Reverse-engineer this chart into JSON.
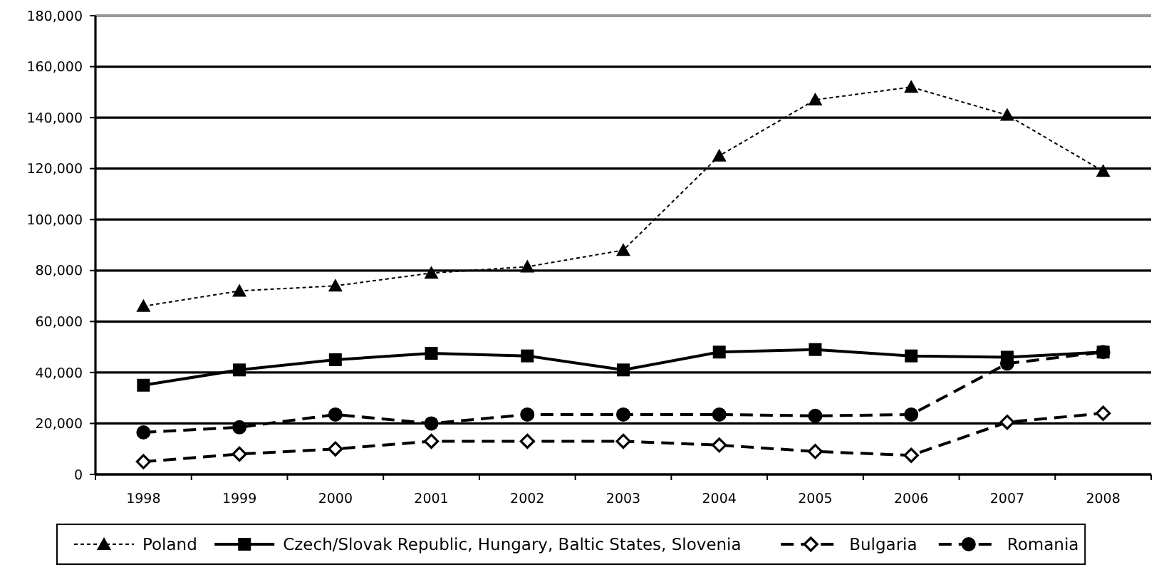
{
  "chart_data": {
    "type": "line",
    "categories": [
      "1998",
      "1999",
      "2000",
      "2001",
      "2002",
      "2003",
      "2004",
      "2005",
      "2006",
      "2007",
      "2008"
    ],
    "ylim": [
      0,
      180000
    ],
    "yticks": [
      {
        "value": 0,
        "label": "0"
      },
      {
        "value": 20000,
        "label": "20,000"
      },
      {
        "value": 40000,
        "label": "40,000"
      },
      {
        "value": 60000,
        "label": "60,000"
      },
      {
        "value": 80000,
        "label": "80,000"
      },
      {
        "value": 100000,
        "label": "100,000"
      },
      {
        "value": 120000,
        "label": "120,000"
      },
      {
        "value": 140000,
        "label": "140,000"
      },
      {
        "value": 160000,
        "label": "160,000"
      },
      {
        "value": 180000,
        "label": "180,000"
      }
    ],
    "grid": "y",
    "legend": "bottom",
    "series": [
      {
        "name": "Poland",
        "color": "#000000",
        "marker": "triangle",
        "line_style": "dotted",
        "values": [
          66000,
          72000,
          74000,
          79000,
          81500,
          88000,
          125000,
          147000,
          152000,
          141000,
          119000
        ]
      },
      {
        "name": "Czech/Slovak Republic, Hungary, Baltic States, Slovenia",
        "color": "#000000",
        "marker": "square",
        "line_style": "solid",
        "values": [
          35000,
          41000,
          45000,
          47500,
          46500,
          41000,
          48000,
          49000,
          46500,
          46000,
          48000
        ]
      },
      {
        "name": "Bulgaria",
        "color": "#000000",
        "marker": "diamond",
        "line_style": "dashed",
        "values": [
          5000,
          8000,
          10000,
          13000,
          13000,
          13000,
          11500,
          9000,
          7500,
          20500,
          24000
        ]
      },
      {
        "name": "Romania",
        "color": "#000000",
        "marker": "circle",
        "line_style": "dashed",
        "values": [
          16500,
          18500,
          23500,
          20000,
          23500,
          23500,
          23500,
          23000,
          23500,
          43500,
          48000
        ]
      }
    ]
  }
}
